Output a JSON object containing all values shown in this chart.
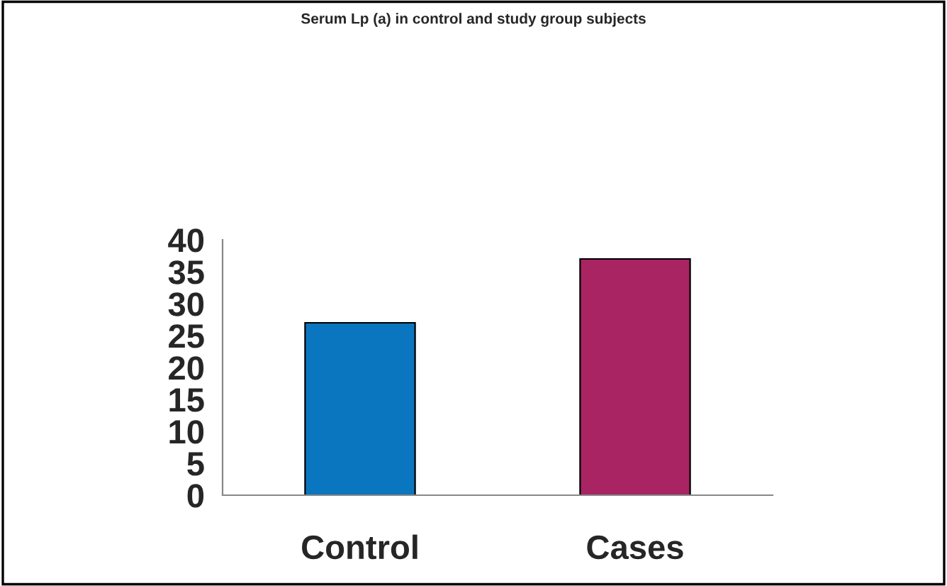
{
  "chart_data": {
    "type": "bar",
    "title": "Serum Lp (a) in control and study group subjects",
    "categories": [
      "Control",
      "Cases"
    ],
    "values": [
      27,
      37
    ],
    "colors": [
      "#0b76c0",
      "#a82463"
    ],
    "ylim": [
      0,
      40
    ],
    "yticks": [
      0,
      5,
      10,
      15,
      20,
      25,
      30,
      35,
      40
    ],
    "grid": false,
    "legend": false
  }
}
